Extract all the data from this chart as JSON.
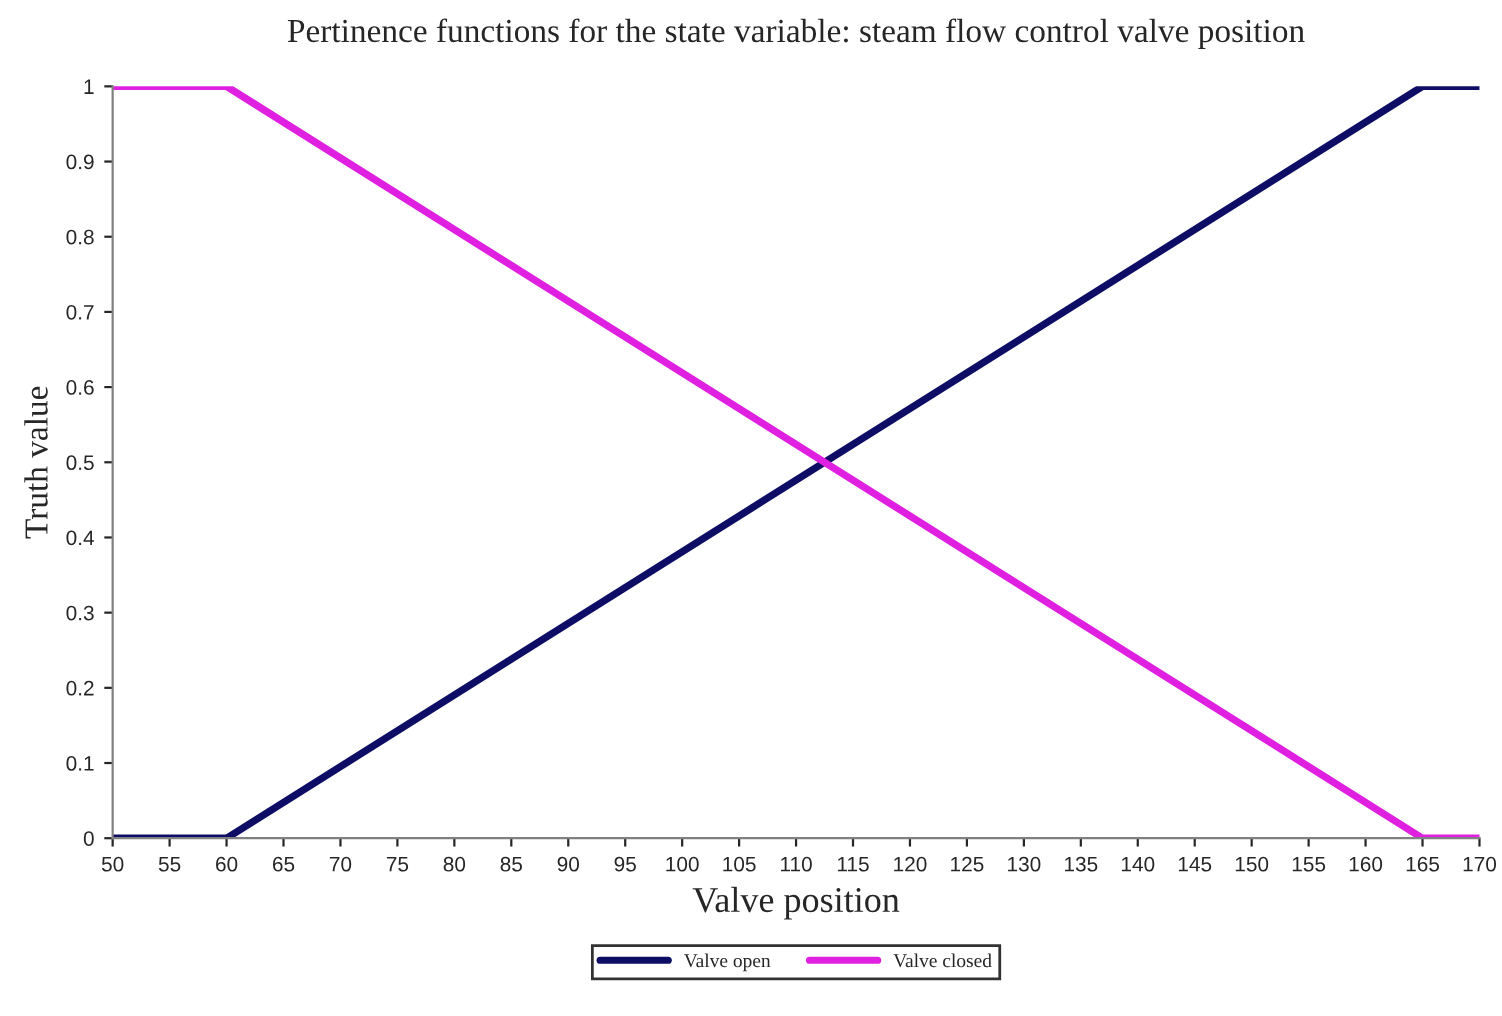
{
  "chart_data": {
    "type": "line",
    "title": "Pertinence functions for the state variable: steam flow control valve position",
    "xlabel": "Valve position",
    "ylabel": "Truth value",
    "series": [
      {
        "name": "Valve open",
        "color": "#0d0d66",
        "x": [
          50,
          60,
          165,
          170
        ],
        "values": [
          0,
          0,
          1,
          1
        ]
      },
      {
        "name": "Valve closed",
        "color": "#e020e0",
        "x": [
          50,
          60,
          165,
          170
        ],
        "values": [
          1,
          1,
          0,
          0
        ]
      }
    ],
    "xlim": [
      50,
      170
    ],
    "xticks": [
      50,
      55,
      60,
      65,
      70,
      75,
      80,
      85,
      90,
      95,
      100,
      105,
      110,
      115,
      120,
      125,
      130,
      135,
      140,
      145,
      150,
      155,
      160,
      165,
      170
    ],
    "ylim": [
      0,
      1
    ],
    "yticks": [
      0,
      0.1,
      0.2,
      0.3,
      0.4,
      0.5,
      0.6,
      0.7,
      0.8,
      0.9,
      1
    ],
    "grid": false,
    "legend": "bottom",
    "marker": "none",
    "line_style": "solid"
  }
}
